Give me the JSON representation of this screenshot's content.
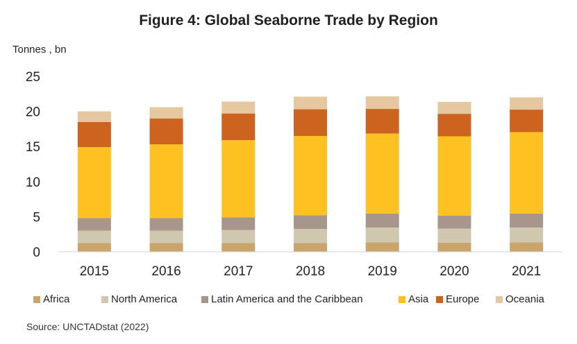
{
  "chart_data": {
    "type": "bar",
    "stacked": true,
    "title": "Figure 4:  Global Seaborne Trade by Region",
    "ylabel": "Tonnes , bn",
    "xlabel": "",
    "source": "Source: UNCTADstat (2022)",
    "categories": [
      "2015",
      "2016",
      "2017",
      "2018",
      "2019",
      "2020",
      "2021"
    ],
    "ylim": [
      0,
      25
    ],
    "yticks": [
      0,
      5,
      10,
      15,
      20,
      25
    ],
    "grid": false,
    "legend_position": "bottom",
    "series": [
      {
        "name": "Africa",
        "color": "#C9A46B",
        "values": [
          1.25,
          1.25,
          1.25,
          1.25,
          1.35,
          1.3,
          1.35
        ]
      },
      {
        "name": "North America",
        "color": "#CFC7AE",
        "values": [
          1.75,
          1.75,
          1.85,
          2.0,
          2.1,
          2.0,
          2.1
        ]
      },
      {
        "name": "Latin America and the Caribbean",
        "color": "#A8968C",
        "values": [
          1.8,
          1.8,
          1.8,
          1.95,
          2.0,
          1.85,
          2.0
        ]
      },
      {
        "name": "Asia",
        "color": "#FDC121",
        "values": [
          10.1,
          10.5,
          11.0,
          11.3,
          11.4,
          11.3,
          11.6
        ]
      },
      {
        "name": "Europe",
        "color": "#CC6420",
        "values": [
          3.6,
          3.7,
          3.8,
          3.8,
          3.5,
          3.2,
          3.2
        ]
      },
      {
        "name": "Oceania",
        "color": "#E5C7A0",
        "values": [
          1.5,
          1.6,
          1.7,
          1.8,
          1.8,
          1.7,
          1.75
        ]
      }
    ]
  }
}
